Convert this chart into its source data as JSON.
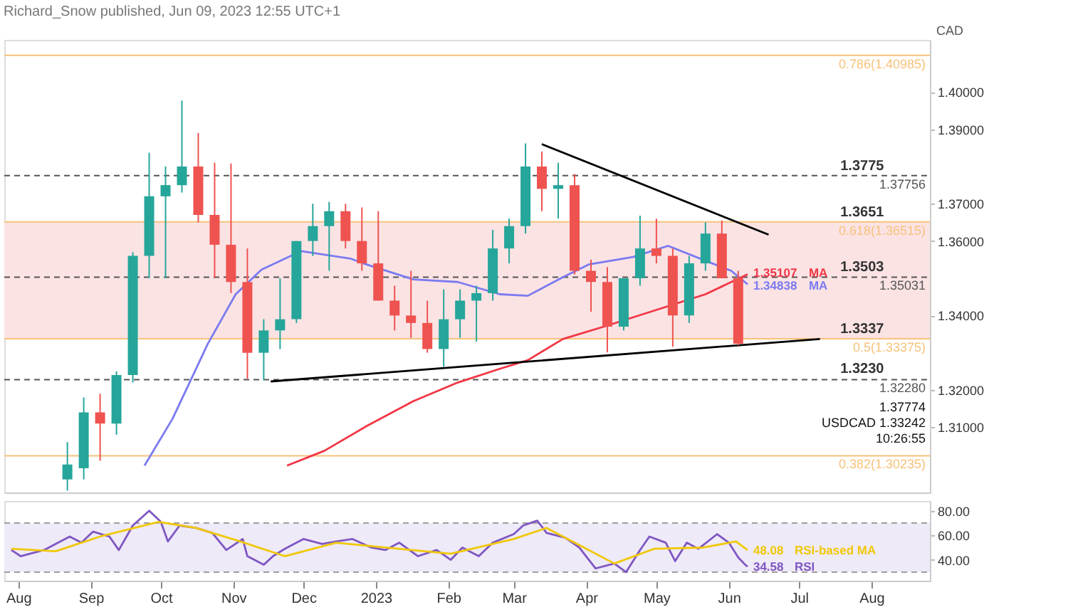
{
  "chart_data": [
    {
      "type": "candlestick",
      "title": "Richard_Snow published, Jun 09, 2023 12:55 UTC+1",
      "ylabel": "CAD",
      "tick_labels": "y",
      "xlim": [
        "2022-07-26",
        "2023-08-26"
      ],
      "ylim": [
        1.2925,
        1.414
      ],
      "yticks": [
        {
          "value": 1.31,
          "label": "1.31000"
        },
        {
          "value": 1.32,
          "label": "1.32000"
        },
        {
          "value": 1.34,
          "label": "1.34000"
        },
        {
          "value": 1.36,
          "label": "1.36000"
        },
        {
          "value": 1.37,
          "label": "1.37000"
        },
        {
          "value": 1.39,
          "label": "1.39000"
        },
        {
          "value": 1.4,
          "label": "1.40000"
        }
      ],
      "x": [
        "2022-08-22",
        "2022-08-29",
        "2022-09-05",
        "2022-09-12",
        "2022-09-19",
        "2022-09-26",
        "2022-10-03",
        "2022-10-10",
        "2022-10-17",
        "2022-10-24",
        "2022-10-31",
        "2022-11-07",
        "2022-11-14",
        "2022-11-21",
        "2022-11-28",
        "2022-12-05",
        "2022-12-12",
        "2022-12-19",
        "2022-12-26",
        "2023-01-02",
        "2023-01-09",
        "2023-01-16",
        "2023-01-23",
        "2023-01-30",
        "2023-02-06",
        "2023-02-13",
        "2023-02-20",
        "2023-02-27",
        "2023-03-06",
        "2023-03-13",
        "2023-03-20",
        "2023-03-27",
        "2023-04-03",
        "2023-04-10",
        "2023-04-17",
        "2023-04-24",
        "2023-05-01",
        "2023-05-08",
        "2023-05-15",
        "2023-05-22",
        "2023-05-29",
        "2023-06-05"
      ],
      "ohlc": [
        [
          1.296,
          1.306,
          1.293,
          1.3
        ],
        [
          1.299,
          1.318,
          1.296,
          1.314
        ],
        [
          1.314,
          1.319,
          1.301,
          1.311
        ],
        [
          1.311,
          1.325,
          1.308,
          1.324
        ],
        [
          1.324,
          1.357,
          1.322,
          1.356
        ],
        [
          1.356,
          1.3837,
          1.35,
          1.372
        ],
        [
          1.372,
          1.38,
          1.35,
          1.375
        ],
        [
          1.375,
          1.3977,
          1.373,
          1.38
        ],
        [
          1.38,
          1.389,
          1.365,
          1.367
        ],
        [
          1.367,
          1.381,
          1.35,
          1.359
        ],
        [
          1.359,
          1.3808,
          1.346,
          1.349
        ],
        [
          1.349,
          1.358,
          1.323,
          1.33
        ],
        [
          1.33,
          1.339,
          1.3226,
          1.336
        ],
        [
          1.336,
          1.35,
          1.331,
          1.339
        ],
        [
          1.339,
          1.36,
          1.338,
          1.36
        ],
        [
          1.36,
          1.37,
          1.356,
          1.364
        ],
        [
          1.364,
          1.3705,
          1.352,
          1.368
        ],
        [
          1.368,
          1.37,
          1.358,
          1.36
        ],
        [
          1.36,
          1.369,
          1.352,
          1.354
        ],
        [
          1.354,
          1.368,
          1.344,
          1.344
        ],
        [
          1.344,
          1.348,
          1.336,
          1.34
        ],
        [
          1.34,
          1.352,
          1.334,
          1.338
        ],
        [
          1.338,
          1.344,
          1.33,
          1.331
        ],
        [
          1.331,
          1.347,
          1.3262,
          1.339
        ],
        [
          1.339,
          1.347,
          1.334,
          1.344
        ],
        [
          1.344,
          1.348,
          1.333,
          1.346
        ],
        [
          1.346,
          1.363,
          1.344,
          1.358
        ],
        [
          1.358,
          1.366,
          1.354,
          1.364
        ],
        [
          1.364,
          1.3862,
          1.362,
          1.38
        ],
        [
          1.38,
          1.384,
          1.368,
          1.374
        ],
        [
          1.374,
          1.381,
          1.366,
          1.375
        ],
        [
          1.375,
          1.378,
          1.351,
          1.352
        ],
        [
          1.352,
          1.355,
          1.341,
          1.349
        ],
        [
          1.349,
          1.353,
          1.3301,
          1.337
        ],
        [
          1.337,
          1.35,
          1.336,
          1.35
        ],
        [
          1.35,
          1.3668,
          1.348,
          1.358
        ],
        [
          1.358,
          1.366,
          1.354,
          1.356
        ],
        [
          1.356,
          1.358,
          1.3316,
          1.34
        ],
        [
          1.34,
          1.356,
          1.338,
          1.354
        ],
        [
          1.354,
          1.365,
          1.352,
          1.362
        ],
        [
          1.362,
          1.3655,
          1.35,
          1.35
        ],
        [
          1.35,
          1.352,
          1.332,
          1.33242
        ]
      ],
      "colors": [
        "#26a69a",
        "#26a69a",
        "#ef5350",
        "#26a69a",
        "#26a69a",
        "#26a69a",
        "#26a69a",
        "#26a69a",
        "#ef5350",
        "#ef5350",
        "#ef5350",
        "#ef5350",
        "#26a69a",
        "#26a69a",
        "#26a69a",
        "#26a69a",
        "#26a69a",
        "#ef5350",
        "#ef5350",
        "#ef5350",
        "#ef5350",
        "#ef5350",
        "#ef5350",
        "#26a69a",
        "#26a69a",
        "#26a69a",
        "#26a69a",
        "#26a69a",
        "#26a69a",
        "#ef5350",
        "#26a69a",
        "#ef5350",
        "#ef5350",
        "#ef5350",
        "#26a69a",
        "#26a69a",
        "#ef5350",
        "#ef5350",
        "#26a69a",
        "#26a69a",
        "#ef5350",
        "#ef5350"
      ],
      "series": [
        {
          "type": "line",
          "name": "MA",
          "color": "#7b7bf0",
          "line_style": "solid",
          "x": [
            "2022-09-24",
            "2022-10-06",
            "2022-10-21",
            "2022-11-02",
            "2022-11-13",
            "2022-11-30",
            "2022-12-21",
            "2022-12-28",
            "2023-01-17",
            "2023-02-05",
            "2023-02-23",
            "2023-03-07",
            "2023-03-22",
            "2023-04-02",
            "2023-04-21",
            "2023-05-06",
            "2023-05-22",
            "2023-06-02",
            "2023-06-09"
          ],
          "values": [
            1.2997,
            1.3123,
            1.3323,
            1.3457,
            1.3523,
            1.3573,
            1.3553,
            1.3537,
            1.3497,
            1.349,
            1.3457,
            1.3453,
            1.3503,
            1.3537,
            1.3557,
            1.3587,
            1.3547,
            1.352,
            1.34838
          ],
          "value_labels": [
            null,
            null,
            null,
            null,
            null,
            null,
            null,
            null,
            null,
            null,
            null,
            null,
            null,
            null,
            null,
            null,
            null,
            null,
            "1.34838"
          ]
        },
        {
          "type": "line",
          "name": "MA",
          "color": "#f23645",
          "line_style": "solid",
          "x": [
            "2022-11-24",
            "2022-12-10",
            "2022-12-28",
            "2023-01-17",
            "2023-02-05",
            "2023-02-23",
            "2023-03-07",
            "2023-03-22",
            "2023-04-10",
            "2023-04-25",
            "2023-05-22",
            "2023-06-09"
          ],
          "values": [
            1.2997,
            1.3037,
            1.3103,
            1.317,
            1.322,
            1.3257,
            1.328,
            1.3337,
            1.3373,
            1.3403,
            1.3457,
            1.35107
          ],
          "value_labels": [
            null,
            null,
            null,
            null,
            null,
            null,
            null,
            null,
            null,
            null,
            null,
            "1.35107"
          ]
        },
        {
          "type": "line",
          "color": "#000000",
          "line_style": "solid",
          "x": [
            "2022-11-17",
            "2023-07-10"
          ],
          "values": [
            1.3223,
            1.3337
          ]
        },
        {
          "type": "line",
          "color": "#000000",
          "line_style": "solid",
          "x": [
            "2023-03-13",
            "2023-06-18"
          ],
          "values": [
            1.386,
            1.3617
          ]
        }
      ],
      "bands": [
        {
          "axis": "y",
          "from": 1.3337,
          "to": 1.3651,
          "color": "#fbe3e4"
        }
      ],
      "ref_lines": [
        {
          "axis": "y",
          "value": 1.40985,
          "label": "0.786(1.40985)",
          "color": "#f7c27a",
          "line_style": "solid"
        },
        {
          "axis": "y",
          "value": 1.36515,
          "label": "0.618(1.36515)",
          "color": "#f7c27a",
          "line_style": "solid"
        },
        {
          "axis": "y",
          "value": 1.33375,
          "label": "0.5(1.33375)",
          "color": "#f7c27a",
          "line_style": "solid"
        },
        {
          "axis": "y",
          "value": 1.30235,
          "label": "0.382(1.30235)",
          "color": "#f7c27a",
          "line_style": "solid"
        },
        {
          "axis": "y",
          "value": 1.37756,
          "label": "1.37756",
          "color": "#555555",
          "line_style": "dashed"
        },
        {
          "axis": "y",
          "value": 1.35031,
          "label": "1.35031",
          "color": "#555555",
          "line_style": "dashed"
        },
        {
          "axis": "y",
          "value": 1.3228,
          "label": "1.32280",
          "color": "#555555",
          "line_style": "dashed"
        }
      ],
      "annotations": [
        {
          "text": "1.3775",
          "x": "2023-07-28",
          "y": 1.3775
        },
        {
          "text": "1.3651",
          "x": "2023-07-28",
          "y": 1.3651
        },
        {
          "text": "1.3503",
          "x": "2023-07-28",
          "y": 1.3503
        },
        {
          "text": "1.3337",
          "x": "2023-07-28",
          "y": 1.3337
        },
        {
          "text": "1.3230",
          "x": "2023-07-28",
          "y": 1.323
        },
        "1.37774",
        "USDCAD 1.33242",
        "10:26:55"
      ]
    },
    {
      "type": "line",
      "xlim": [
        "2022-07-26",
        "2023-08-26"
      ],
      "xticks": [
        {
          "value": "2022-08-01",
          "label": "Aug"
        },
        {
          "value": "2022-09-01",
          "label": "Sep"
        },
        {
          "value": "2022-10-01",
          "label": "Oct"
        },
        {
          "value": "2022-11-01",
          "label": "Nov"
        },
        {
          "value": "2022-12-01",
          "label": "Dec"
        },
        {
          "value": "2023-01-01",
          "label": "2023"
        },
        {
          "value": "2023-02-01",
          "label": "Feb"
        },
        {
          "value": "2023-03-01",
          "label": "Mar"
        },
        {
          "value": "2023-04-01",
          "label": "Apr"
        },
        {
          "value": "2023-05-01",
          "label": "May"
        },
        {
          "value": "2023-06-01",
          "label": "Jun"
        },
        {
          "value": "2023-07-01",
          "label": "Jul"
        },
        {
          "value": "2023-08-01",
          "label": "Aug"
        }
      ],
      "ylim": [
        23,
        88
      ],
      "yticks": [
        {
          "value": 80,
          "label": "80.00"
        },
        {
          "value": 60,
          "label": "60.00"
        },
        {
          "value": 40,
          "label": "40.00"
        }
      ],
      "series": [
        {
          "name": "RSI",
          "color": "#7e57c2",
          "line_style": "solid",
          "x": [
            "2022-07-29",
            "2022-08-02",
            "2022-08-12",
            "2022-08-23",
            "2022-08-28",
            "2022-09-02",
            "2022-09-09",
            "2022-09-13",
            "2022-09-19",
            "2022-09-26",
            "2022-10-01",
            "2022-10-04",
            "2022-10-09",
            "2022-10-16",
            "2022-10-23",
            "2022-10-29",
            "2022-11-05",
            "2022-11-07",
            "2022-11-14",
            "2022-11-18",
            "2022-11-23",
            "2022-12-01",
            "2022-12-09",
            "2022-12-15",
            "2022-12-22",
            "2022-12-30",
            "2023-01-05",
            "2023-01-11",
            "2023-01-19",
            "2023-01-27",
            "2023-02-02",
            "2023-02-07",
            "2023-02-14",
            "2023-02-20",
            "2023-03-01",
            "2023-03-05",
            "2023-03-11",
            "2023-03-15",
            "2023-03-23",
            "2023-03-29",
            "2023-04-05",
            "2023-04-13",
            "2023-04-18",
            "2023-04-24",
            "2023-04-28",
            "2023-05-05",
            "2023-05-09",
            "2023-05-14",
            "2023-05-19",
            "2023-05-27",
            "2023-06-01",
            "2023-06-05",
            "2023-06-08",
            "2023-06-09"
          ],
          "values": [
            48,
            43,
            48,
            59,
            54,
            63,
            59,
            48,
            68,
            80,
            71,
            55,
            68,
            66,
            62,
            48,
            57,
            43,
            36,
            43,
            49,
            57,
            53,
            55,
            57,
            50,
            48,
            54,
            43,
            48,
            40,
            50,
            43,
            54,
            61,
            68,
            72,
            62,
            58,
            50,
            33,
            37,
            30,
            48,
            59,
            54,
            39,
            54,
            49,
            61,
            54,
            42,
            36,
            34.58
          ],
          "value_labels": [
            null,
            null,
            null,
            null,
            null,
            null,
            null,
            null,
            null,
            null,
            null,
            null,
            null,
            null,
            null,
            null,
            null,
            null,
            null,
            null,
            null,
            null,
            null,
            null,
            null,
            null,
            null,
            null,
            null,
            null,
            null,
            null,
            null,
            null,
            null,
            null,
            null,
            null,
            null,
            null,
            null,
            null,
            null,
            null,
            null,
            null,
            null,
            null,
            null,
            null,
            null,
            null,
            null,
            "34.58"
          ]
        },
        {
          "name": "RSI-based MA",
          "color": "#f0c808",
          "line_style": "solid",
          "x": [
            "2022-07-29",
            "2022-08-17",
            "2022-09-05",
            "2022-09-30",
            "2022-10-16",
            "2022-11-04",
            "2022-11-23",
            "2022-12-15",
            "2023-01-05",
            "2023-02-02",
            "2023-03-01",
            "2023-03-15",
            "2023-03-28",
            "2023-04-13",
            "2023-04-30",
            "2023-05-21",
            "2023-06-04",
            "2023-06-09"
          ],
          "values": [
            49,
            47,
            59,
            71,
            66,
            55,
            43,
            54,
            50,
            45,
            57,
            66,
            53,
            37,
            49,
            50,
            55,
            48.08
          ],
          "value_labels": [
            null,
            null,
            null,
            null,
            null,
            null,
            null,
            null,
            null,
            null,
            null,
            null,
            null,
            null,
            null,
            null,
            null,
            "48.08"
          ]
        }
      ],
      "bands": [
        {
          "axis": "y",
          "from": 30,
          "to": 70,
          "color": "#efeaf8"
        }
      ],
      "ref_lines": [
        {
          "axis": "y",
          "value": 70,
          "color": "#9e9e9e",
          "line_style": "dashed"
        },
        {
          "axis": "y",
          "value": 30,
          "color": "#9e9e9e",
          "line_style": "dashed"
        }
      ]
    }
  ]
}
